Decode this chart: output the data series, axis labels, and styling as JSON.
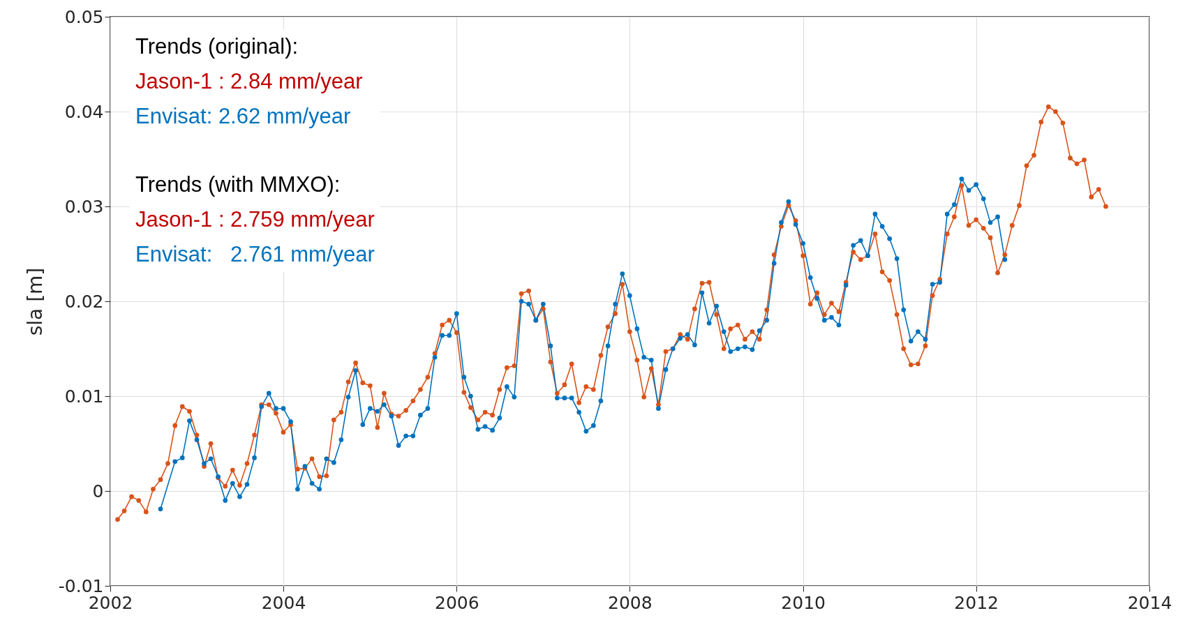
{
  "chart_data": {
    "type": "line",
    "ylabel": "sla [m]",
    "xlim": [
      "2002",
      "2014"
    ],
    "xticks": [
      "2002",
      "2004",
      "2006",
      "2008",
      "2010",
      "2012",
      "2014"
    ],
    "ylim": [
      -0.01,
      0.05
    ],
    "yticks": [
      -0.01,
      0,
      0.01,
      0.02,
      0.03,
      0.04,
      0.05
    ],
    "grid": true,
    "marker": "circle",
    "line_style": "solid",
    "annotations": [
      "Trends (original):",
      "Jason-1 : 2.84 mm/year",
      "Envisat: 2.62 mm/year",
      "Trends (with MMXO):",
      "Jason-1 : 2.759 mm/year",
      "Envisat:   2.761 mm/year"
    ],
    "series": [
      {
        "color": "#d95319",
        "x": [
          "2002-02",
          "2002-03",
          "2002-04",
          "2002-05",
          "2002-06",
          "2002-07",
          "2002-08",
          "2002-09",
          "2002-10",
          "2002-11",
          "2002-12",
          "2003-01",
          "2003-02",
          "2003-03",
          "2003-04",
          "2003-05",
          "2003-06",
          "2003-07",
          "2003-08",
          "2003-09",
          "2003-10",
          "2003-11",
          "2003-12",
          "2004-01",
          "2004-02",
          "2004-03",
          "2004-04",
          "2004-05",
          "2004-06",
          "2004-07",
          "2004-08",
          "2004-09",
          "2004-10",
          "2004-11",
          "2004-12",
          "2005-01",
          "2005-02",
          "2005-03",
          "2005-04",
          "2005-05",
          "2005-06",
          "2005-07",
          "2005-08",
          "2005-09",
          "2005-10",
          "2005-11",
          "2005-12",
          "2006-01",
          "2006-02",
          "2006-03",
          "2006-04",
          "2006-05",
          "2006-06",
          "2006-07",
          "2006-08",
          "2006-09",
          "2006-10",
          "2006-11",
          "2006-12",
          "2007-01",
          "2007-02",
          "2007-03",
          "2007-04",
          "2007-05",
          "2007-06",
          "2007-07",
          "2007-08",
          "2007-09",
          "2007-10",
          "2007-11",
          "2007-12",
          "2008-01",
          "2008-02",
          "2008-03",
          "2008-04",
          "2008-05",
          "2008-06",
          "2008-07",
          "2008-08",
          "2008-09",
          "2008-10",
          "2008-11",
          "2008-12",
          "2009-01",
          "2009-02",
          "2009-03",
          "2009-04",
          "2009-05",
          "2009-06",
          "2009-07",
          "2009-08",
          "2009-09",
          "2009-10",
          "2009-11",
          "2009-12",
          "2010-01",
          "2010-02",
          "2010-03",
          "2010-04",
          "2010-05",
          "2010-06",
          "2010-07",
          "2010-08",
          "2010-09",
          "2010-10",
          "2010-11",
          "2010-12",
          "2011-01",
          "2011-02",
          "2011-03",
          "2011-04",
          "2011-05",
          "2011-06",
          "2011-07",
          "2011-08",
          "2011-09",
          "2011-10",
          "2011-11",
          "2011-12",
          "2012-01",
          "2012-02",
          "2012-03",
          "2012-04",
          "2012-05",
          "2012-06",
          "2012-07",
          "2012-08",
          "2012-09",
          "2012-10",
          "2012-11",
          "2012-12",
          "2013-01",
          "2013-02",
          "2013-03",
          "2013-04",
          "2013-05",
          "2013-06",
          "2013-07"
        ],
        "values": [
          -0.003,
          -0.0021,
          -0.0006,
          -0.001,
          -0.0022,
          0.0002,
          0.0012,
          0.0029,
          0.0069,
          0.0089,
          0.0084,
          0.0059,
          0.0026,
          0.005,
          0.0014,
          0.0005,
          0.0022,
          0.0006,
          0.0029,
          0.0059,
          0.0091,
          0.0091,
          0.0082,
          0.0062,
          0.007,
          0.0023,
          0.0024,
          0.0034,
          0.0015,
          0.0016,
          0.0075,
          0.0083,
          0.0115,
          0.0135,
          0.0114,
          0.0111,
          0.0067,
          0.0103,
          0.0081,
          0.0079,
          0.0085,
          0.0095,
          0.0107,
          0.012,
          0.0145,
          0.0175,
          0.018,
          0.0167,
          0.0104,
          0.0088,
          0.0075,
          0.0083,
          0.008,
          0.0107,
          0.013,
          0.0132,
          0.0208,
          0.0211,
          0.018,
          0.0192,
          0.0136,
          0.0103,
          0.0112,
          0.0134,
          0.0093,
          0.011,
          0.0107,
          0.0143,
          0.0173,
          0.0187,
          0.0218,
          0.0168,
          0.0138,
          0.0099,
          0.0129,
          0.0091,
          0.0147,
          0.015,
          0.0165,
          0.016,
          0.0192,
          0.0219,
          0.022,
          0.0186,
          0.015,
          0.0171,
          0.0175,
          0.016,
          0.0168,
          0.016,
          0.0191,
          0.0249,
          0.0279,
          0.0301,
          0.0285,
          0.0248,
          0.0197,
          0.0209,
          0.0186,
          0.0198,
          0.0189,
          0.022,
          0.0252,
          0.0244,
          0.0248,
          0.0271,
          0.0231,
          0.0222,
          0.0186,
          0.015,
          0.0133,
          0.0134,
          0.0153,
          0.0206,
          0.0223,
          0.0271,
          0.0289,
          0.0322,
          0.028,
          0.0286,
          0.0277,
          0.0267,
          0.023,
          0.0249,
          0.028,
          0.0301,
          0.0343,
          0.0354,
          0.0389,
          0.0405,
          0.04,
          0.0388,
          0.0351,
          0.0345,
          0.0349,
          0.031,
          0.0318,
          0.03
        ]
      },
      {
        "color": "#0072bd",
        "x": [
          "2002-08",
          "2002-10",
          "2002-11",
          "2002-12",
          "2003-01",
          "2003-02",
          "2003-03",
          "2003-04",
          "2003-05",
          "2003-06",
          "2003-07",
          "2003-08",
          "2003-09",
          "2003-10",
          "2003-11",
          "2003-12",
          "2004-01",
          "2004-02",
          "2004-03",
          "2004-04",
          "2004-05",
          "2004-06",
          "2004-07",
          "2004-08",
          "2004-09",
          "2004-10",
          "2004-11",
          "2004-12",
          "2005-01",
          "2005-02",
          "2005-03",
          "2005-04",
          "2005-05",
          "2005-06",
          "2005-07",
          "2005-08",
          "2005-09",
          "2005-10",
          "2005-11",
          "2005-12",
          "2006-01",
          "2006-02",
          "2006-03",
          "2006-04",
          "2006-05",
          "2006-06",
          "2006-07",
          "2006-08",
          "2006-09",
          "2006-10",
          "2006-11",
          "2006-12",
          "2007-01",
          "2007-02",
          "2007-03",
          "2007-04",
          "2007-05",
          "2007-06",
          "2007-07",
          "2007-08",
          "2007-09",
          "2007-10",
          "2007-11",
          "2007-12",
          "2008-01",
          "2008-02",
          "2008-03",
          "2008-04",
          "2008-05",
          "2008-06",
          "2008-07",
          "2008-08",
          "2008-09",
          "2008-10",
          "2008-11",
          "2008-12",
          "2009-01",
          "2009-02",
          "2009-03",
          "2009-04",
          "2009-05",
          "2009-06",
          "2009-07",
          "2009-08",
          "2009-09",
          "2009-10",
          "2009-11",
          "2009-12",
          "2010-01",
          "2010-02",
          "2010-03",
          "2010-04",
          "2010-05",
          "2010-06",
          "2010-07",
          "2010-08",
          "2010-09",
          "2010-10",
          "2010-11",
          "2010-12",
          "2011-01",
          "2011-02",
          "2011-03",
          "2011-04",
          "2011-05",
          "2011-06",
          "2011-07",
          "2011-08",
          "2011-09",
          "2011-10",
          "2011-11",
          "2011-12",
          "2012-01",
          "2012-02",
          "2012-03",
          "2012-04",
          "2012-05"
        ],
        "values": [
          -0.0019,
          0.0031,
          0.0035,
          0.0074,
          0.0054,
          0.0029,
          0.0034,
          0.0015,
          -0.001,
          0.0008,
          -0.0006,
          0.0007,
          0.0035,
          0.0089,
          0.0103,
          0.0087,
          0.0087,
          0.0073,
          0.0002,
          0.0026,
          0.0008,
          0.0002,
          0.0034,
          0.003,
          0.0054,
          0.0099,
          0.0127,
          0.007,
          0.0087,
          0.0084,
          0.0091,
          0.0079,
          0.0048,
          0.0058,
          0.0058,
          0.008,
          0.0087,
          0.0141,
          0.0164,
          0.0164,
          0.0187,
          0.012,
          0.01,
          0.0065,
          0.0068,
          0.0064,
          0.0077,
          0.011,
          0.0099,
          0.02,
          0.0197,
          0.018,
          0.0197,
          0.0153,
          0.0098,
          0.0098,
          0.0098,
          0.0083,
          0.0063,
          0.0069,
          0.0095,
          0.0153,
          0.0197,
          0.0229,
          0.0206,
          0.0171,
          0.0141,
          0.0138,
          0.0087,
          0.0128,
          0.015,
          0.0161,
          0.0165,
          0.0154,
          0.0209,
          0.0177,
          0.0195,
          0.0168,
          0.0147,
          0.015,
          0.0152,
          0.0149,
          0.0169,
          0.018,
          0.024,
          0.0283,
          0.0305,
          0.0281,
          0.0261,
          0.0225,
          0.0203,
          0.018,
          0.0183,
          0.0175,
          0.0217,
          0.0259,
          0.0264,
          0.0248,
          0.0292,
          0.0279,
          0.0266,
          0.0245,
          0.0191,
          0.0158,
          0.0168,
          0.016,
          0.0218,
          0.022,
          0.0292,
          0.0302,
          0.0329,
          0.0317,
          0.0323,
          0.0308,
          0.0283,
          0.0289,
          0.0244
        ]
      }
    ]
  }
}
